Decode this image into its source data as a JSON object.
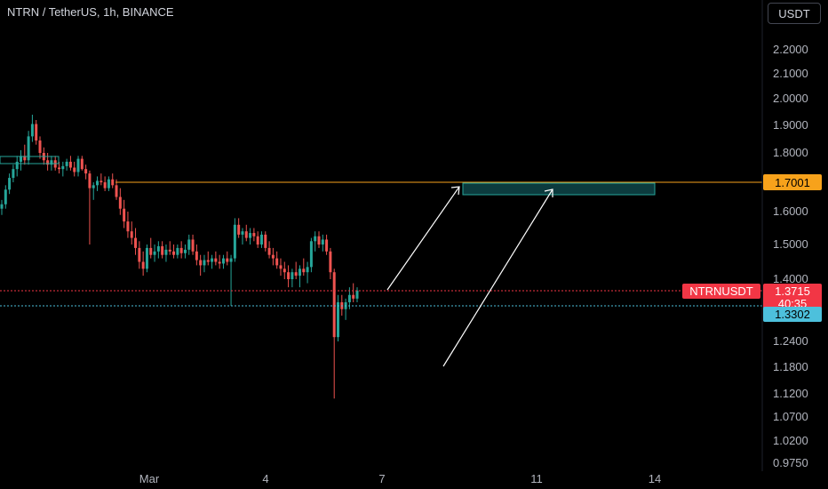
{
  "header": {
    "title": "NTRN / TetherUS, 1h, BINANCE",
    "currency_button": "USDT"
  },
  "colors": {
    "up": "#26a69a",
    "down": "#ef5350",
    "level_line": "#f7a21b",
    "last_price": "#f23645",
    "blue_line": "#4dc0dc",
    "target_box_fill": "#0c3b3e",
    "target_box_border": "#26a69a",
    "arrow": "#ffffff"
  },
  "chart_data": {
    "type": "candlestick",
    "symbol_label": "NTRNUSDT",
    "y_ticks": [
      "2.2000",
      "2.1000",
      "2.0000",
      "1.9000",
      "1.8000",
      "1.6000",
      "1.5000",
      "1.4000",
      "1.2400",
      "1.1800",
      "1.1200",
      "1.0700",
      "1.0200",
      "0.9750"
    ],
    "x_ticks": [
      "Mar",
      "4",
      "7",
      "11",
      "14"
    ],
    "levels": {
      "resistance": "1.7001",
      "last_price": "1.3715",
      "countdown": "40:35",
      "blue_level": "1.3302"
    },
    "candles_ohlc": [
      [
        1.61,
        1.64,
        1.59,
        1.625
      ],
      [
        1.625,
        1.69,
        1.61,
        1.675
      ],
      [
        1.675,
        1.73,
        1.66,
        1.715
      ],
      [
        1.715,
        1.76,
        1.7,
        1.745
      ],
      [
        1.745,
        1.79,
        1.72,
        1.77
      ],
      [
        1.77,
        1.81,
        1.74,
        1.79
      ],
      [
        1.79,
        1.83,
        1.76,
        1.775
      ],
      [
        1.775,
        1.88,
        1.76,
        1.86
      ],
      [
        1.86,
        1.94,
        1.84,
        1.905
      ],
      [
        1.905,
        1.92,
        1.83,
        1.845
      ],
      [
        1.845,
        1.86,
        1.78,
        1.8
      ],
      [
        1.8,
        1.82,
        1.76,
        1.775
      ],
      [
        1.775,
        1.8,
        1.74,
        1.76
      ],
      [
        1.76,
        1.79,
        1.74,
        1.775
      ],
      [
        1.775,
        1.79,
        1.74,
        1.75
      ],
      [
        1.75,
        1.77,
        1.73,
        1.745
      ],
      [
        1.745,
        1.77,
        1.72,
        1.755
      ],
      [
        1.755,
        1.78,
        1.74,
        1.77
      ],
      [
        1.77,
        1.79,
        1.74,
        1.75
      ],
      [
        1.75,
        1.77,
        1.72,
        1.735
      ],
      [
        1.735,
        1.79,
        1.72,
        1.78
      ],
      [
        1.78,
        1.79,
        1.74,
        1.745
      ],
      [
        1.745,
        1.76,
        1.71,
        1.73
      ],
      [
        1.73,
        1.74,
        1.5,
        1.68
      ],
      [
        1.68,
        1.7,
        1.64,
        1.69
      ],
      [
        1.69,
        1.72,
        1.67,
        1.705
      ],
      [
        1.705,
        1.73,
        1.69,
        1.7
      ],
      [
        1.7,
        1.72,
        1.67,
        1.68
      ],
      [
        1.68,
        1.72,
        1.67,
        1.71
      ],
      [
        1.71,
        1.73,
        1.68,
        1.69
      ],
      [
        1.69,
        1.71,
        1.64,
        1.65
      ],
      [
        1.65,
        1.68,
        1.59,
        1.61
      ],
      [
        1.61,
        1.64,
        1.55,
        1.57
      ],
      [
        1.57,
        1.6,
        1.52,
        1.54
      ],
      [
        1.54,
        1.57,
        1.5,
        1.52
      ],
      [
        1.52,
        1.55,
        1.47,
        1.49
      ],
      [
        1.49,
        1.51,
        1.43,
        1.45
      ],
      [
        1.45,
        1.48,
        1.41,
        1.43
      ],
      [
        1.43,
        1.5,
        1.42,
        1.49
      ],
      [
        1.49,
        1.52,
        1.46,
        1.47
      ],
      [
        1.47,
        1.5,
        1.45,
        1.48
      ],
      [
        1.48,
        1.51,
        1.46,
        1.495
      ],
      [
        1.495,
        1.51,
        1.46,
        1.47
      ],
      [
        1.47,
        1.5,
        1.45,
        1.485
      ],
      [
        1.485,
        1.51,
        1.47,
        1.48
      ],
      [
        1.48,
        1.5,
        1.46,
        1.47
      ],
      [
        1.47,
        1.5,
        1.46,
        1.49
      ],
      [
        1.49,
        1.51,
        1.46,
        1.475
      ],
      [
        1.475,
        1.5,
        1.46,
        1.485
      ],
      [
        1.485,
        1.53,
        1.47,
        1.515
      ],
      [
        1.515,
        1.53,
        1.47,
        1.48
      ],
      [
        1.48,
        1.5,
        1.44,
        1.455
      ],
      [
        1.455,
        1.47,
        1.41,
        1.44
      ],
      [
        1.44,
        1.47,
        1.42,
        1.455
      ],
      [
        1.455,
        1.48,
        1.44,
        1.45
      ],
      [
        1.45,
        1.47,
        1.43,
        1.46
      ],
      [
        1.46,
        1.48,
        1.44,
        1.45
      ],
      [
        1.45,
        1.47,
        1.43,
        1.445
      ],
      [
        1.445,
        1.47,
        1.43,
        1.46
      ],
      [
        1.46,
        1.48,
        1.44,
        1.45
      ],
      [
        1.45,
        1.47,
        1.33,
        1.46
      ],
      [
        1.46,
        1.58,
        1.45,
        1.56
      ],
      [
        1.56,
        1.58,
        1.52,
        1.53
      ],
      [
        1.53,
        1.55,
        1.5,
        1.54
      ],
      [
        1.54,
        1.56,
        1.51,
        1.52
      ],
      [
        1.52,
        1.55,
        1.5,
        1.535
      ],
      [
        1.535,
        1.55,
        1.51,
        1.525
      ],
      [
        1.525,
        1.54,
        1.49,
        1.5
      ],
      [
        1.5,
        1.54,
        1.49,
        1.53
      ],
      [
        1.53,
        1.54,
        1.48,
        1.49
      ],
      [
        1.49,
        1.51,
        1.46,
        1.47
      ],
      [
        1.47,
        1.49,
        1.44,
        1.46
      ],
      [
        1.46,
        1.48,
        1.43,
        1.44
      ],
      [
        1.44,
        1.46,
        1.41,
        1.43
      ],
      [
        1.43,
        1.45,
        1.4,
        1.42
      ],
      [
        1.42,
        1.44,
        1.38,
        1.4
      ],
      [
        1.4,
        1.43,
        1.38,
        1.42
      ],
      [
        1.42,
        1.45,
        1.4,
        1.41
      ],
      [
        1.41,
        1.44,
        1.38,
        1.43
      ],
      [
        1.43,
        1.46,
        1.41,
        1.42
      ],
      [
        1.42,
        1.45,
        1.39,
        1.435
      ],
      [
        1.435,
        1.52,
        1.42,
        1.51
      ],
      [
        1.51,
        1.54,
        1.48,
        1.525
      ],
      [
        1.525,
        1.54,
        1.49,
        1.5
      ],
      [
        1.5,
        1.53,
        1.48,
        1.515
      ],
      [
        1.515,
        1.53,
        1.47,
        1.48
      ],
      [
        1.48,
        1.49,
        1.4,
        1.42
      ],
      [
        1.42,
        1.43,
        1.11,
        1.25
      ],
      [
        1.25,
        1.36,
        1.24,
        1.34
      ],
      [
        1.34,
        1.36,
        1.3,
        1.32
      ],
      [
        1.32,
        1.35,
        1.29,
        1.34
      ],
      [
        1.34,
        1.38,
        1.32,
        1.36
      ],
      [
        1.36,
        1.39,
        1.34,
        1.35
      ],
      [
        1.35,
        1.38,
        1.34,
        1.372
      ]
    ]
  }
}
